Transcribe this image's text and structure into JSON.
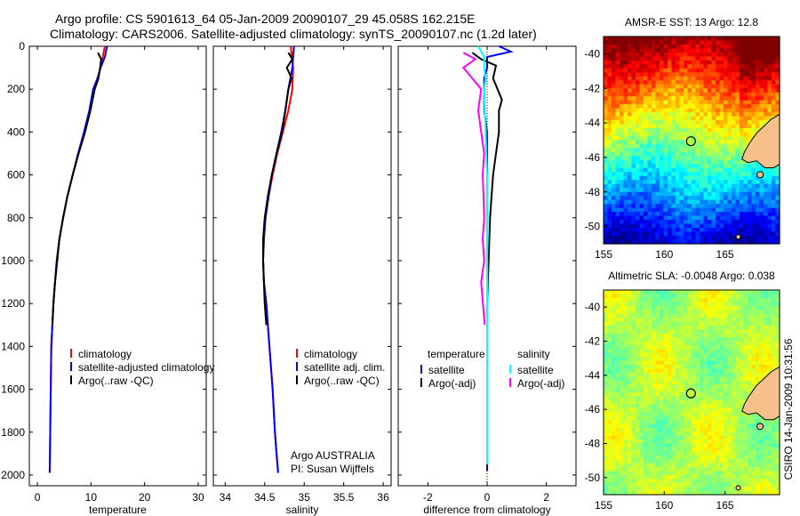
{
  "header": {
    "line1": "Argo profile: CS 5901613_64 05-Jan-2009 20090107_29 45.058S 162.215E",
    "line2": "Climatology: CARS2006. Satellite-adjusted climatology: synTS_20090107.nc (1.2d later)"
  },
  "colors": {
    "clim": "#ff0000",
    "sat": "#0000ff",
    "argo": "#000000",
    "sat_cyan": "#00ffff",
    "argo_mag": "#ff00ff"
  },
  "chart_data": [
    {
      "type": "line",
      "id": "temperature",
      "xlabel": "temperature",
      "ylabel": "",
      "xlim": [
        -1.5,
        31.5
      ],
      "ylim": [
        2050,
        0
      ],
      "xticks": [
        0,
        10,
        20,
        30
      ],
      "yticks": [
        0,
        200,
        400,
        600,
        800,
        1000,
        1200,
        1400,
        1600,
        1800,
        2000
      ],
      "legend": [
        "climatology",
        "satellite-adjusted climatology",
        "Argo(..raw -QC)"
      ],
      "series": [
        {
          "name": "climatology",
          "color": "red",
          "x": [
            12.6,
            12.2,
            11.8,
            11.2,
            10.5,
            9.8,
            8.8,
            7.6,
            6.6,
            5.6,
            4.8,
            4.1,
            3.7,
            3.3,
            3.0,
            2.8,
            2.6,
            2.5,
            2.4,
            2.3
          ],
          "y": [
            0,
            50,
            100,
            150,
            200,
            300,
            400,
            500,
            600,
            700,
            800,
            900,
            1000,
            1100,
            1200,
            1300,
            1400,
            1600,
            1800,
            1990
          ]
        },
        {
          "name": "satellite-adjusted climatology",
          "color": "blue",
          "x": [
            13.0,
            12.6,
            11.8,
            11.2,
            10.4,
            9.7,
            8.7,
            7.6,
            6.6,
            5.6,
            4.8,
            4.1,
            3.7,
            3.3,
            3.0,
            2.8,
            2.6,
            2.5,
            2.4,
            2.3
          ],
          "y": [
            0,
            50,
            100,
            150,
            200,
            300,
            400,
            500,
            600,
            700,
            800,
            900,
            1000,
            1100,
            1200,
            1300,
            1400,
            1600,
            1800,
            1990
          ]
        },
        {
          "name": "Argo(..raw -QC)",
          "color": "black",
          "x": [
            11.3,
            11.9,
            11.7,
            11.4,
            10.7,
            9.9,
            8.9,
            7.7,
            6.6,
            5.6,
            4.8,
            4.1,
            3.6,
            3.3,
            3.0,
            2.8
          ],
          "y": [
            30,
            60,
            100,
            150,
            200,
            300,
            400,
            500,
            600,
            700,
            800,
            900,
            1000,
            1100,
            1200,
            1300
          ]
        }
      ]
    },
    {
      "type": "line",
      "id": "salinity",
      "xlabel": "salinity",
      "ylabel": "",
      "xlim": [
        33.85,
        36.1
      ],
      "ylim": [
        2050,
        0
      ],
      "xticks": [
        34,
        34.5,
        35,
        35.5,
        36
      ],
      "yticks": [
        0,
        200,
        400,
        600,
        800,
        1000,
        1200,
        1400,
        1600,
        1800,
        2000
      ],
      "legend": [
        "climatology",
        "satellite adj. clim.",
        "Argo(..raw -QC)"
      ],
      "annotation": [
        "Argo AUSTRALIA",
        "PI: Susan Wijffels"
      ],
      "series": [
        {
          "name": "climatology",
          "color": "red",
          "x": [
            34.83,
            34.86,
            34.85,
            34.8,
            34.73,
            34.66,
            34.6,
            34.55,
            34.51,
            34.49,
            34.48,
            34.49,
            34.52,
            34.56,
            34.6,
            34.63,
            34.65,
            34.67
          ],
          "y": [
            0,
            100,
            200,
            300,
            400,
            500,
            600,
            700,
            800,
            900,
            1000,
            1100,
            1200,
            1400,
            1600,
            1800,
            1900,
            1990
          ]
        },
        {
          "name": "satellite adj. clim.",
          "color": "blue",
          "x": [
            34.87,
            34.85,
            34.8,
            34.76,
            34.71,
            34.65,
            34.59,
            34.55,
            34.51,
            34.49,
            34.48,
            34.49,
            34.52,
            34.56,
            34.6,
            34.63,
            34.65,
            34.67
          ],
          "y": [
            0,
            100,
            200,
            300,
            400,
            500,
            600,
            700,
            800,
            900,
            1000,
            1100,
            1200,
            1400,
            1600,
            1800,
            1900,
            1990
          ]
        },
        {
          "name": "Argo(..raw -QC)",
          "color": "black",
          "x": [
            34.8,
            34.85,
            34.78,
            34.84,
            34.8,
            34.77,
            34.72,
            34.65,
            34.59,
            34.54,
            34.5,
            34.48,
            34.48,
            34.49,
            34.5,
            34.52
          ],
          "y": [
            30,
            60,
            100,
            150,
            200,
            280,
            400,
            500,
            600,
            700,
            800,
            900,
            1000,
            1100,
            1200,
            1300
          ]
        }
      ]
    },
    {
      "type": "line",
      "id": "difference",
      "xlabel": "difference from climatology",
      "ylabel": "",
      "xlim": [
        -3,
        3
      ],
      "ylim": [
        2050,
        0
      ],
      "xticks": [
        -2,
        0,
        2
      ],
      "yticks": [
        0,
        200,
        400,
        600,
        800,
        1000,
        1200,
        1400,
        1600,
        1800,
        2000
      ],
      "legend_left_title": "temperature",
      "legend_left": [
        "satellite",
        "Argo(-adj)"
      ],
      "legend_right_title": "salinity",
      "legend_right": [
        "satellite",
        "Argo(-adj)"
      ],
      "series": [
        {
          "name": "temperature satellite",
          "color": "blue",
          "x": [
            0.4,
            0.8,
            0.0,
            0.0,
            -0.1,
            -0.1,
            -0.1,
            0.0,
            0.0,
            0.0,
            0.0,
            0.0,
            0.0,
            0.0,
            0.0
          ],
          "y": [
            0,
            25,
            50,
            100,
            150,
            200,
            300,
            400,
            600,
            800,
            1000,
            1200,
            1400,
            1600,
            1980
          ]
        },
        {
          "name": "temperature Argo(-adj)",
          "color": "black",
          "x": [
            -0.5,
            -0.2,
            0.3,
            0.2,
            0.5,
            0.4,
            0.4,
            0.3,
            0.2,
            0.1,
            0.05,
            0.0,
            0.0
          ],
          "y": [
            30,
            60,
            90,
            150,
            250,
            300,
            400,
            500,
            600,
            800,
            1000,
            1200,
            1300
          ]
        },
        {
          "name": "salinity satellite",
          "color": "cyan",
          "x": [
            -0.3,
            -0.1,
            -0.1,
            -0.05,
            -0.1,
            -0.08,
            -0.05,
            -0.03,
            0.0,
            0.0,
            0.0,
            0.0,
            0.0
          ],
          "y": [
            0,
            50,
            100,
            150,
            200,
            300,
            400,
            500,
            600,
            800,
            1000,
            1200,
            1950
          ]
        },
        {
          "name": "salinity Argo(-adj)",
          "color": "magenta",
          "x": [
            -0.8,
            -0.4,
            -0.8,
            -0.5,
            -0.2,
            -0.3,
            -0.2,
            -0.1,
            -0.15,
            -0.12,
            -0.1,
            -0.15,
            -0.1,
            -0.2,
            -0.08
          ],
          "y": [
            30,
            60,
            100,
            150,
            200,
            300,
            400,
            500,
            600,
            700,
            800,
            900,
            1000,
            1100,
            1300
          ]
        }
      ]
    },
    {
      "type": "heatmap",
      "id": "sst_map",
      "title": "AMSR-E SST: 13 Argo: 12.8",
      "xlim": [
        155,
        169.5
      ],
      "ylim": [
        -51,
        -39
      ],
      "xticks": [
        155,
        160,
        165
      ],
      "yticks": [
        -40,
        -42,
        -44,
        -46,
        -48,
        -50
      ],
      "marker": {
        "lon": 162.2,
        "lat": -45.06
      },
      "colormap": "jet"
    },
    {
      "type": "heatmap",
      "id": "sla_map",
      "title": "Altimetric SLA: -0.0048 Argo: 0.038",
      "xlim": [
        155,
        169.5
      ],
      "ylim": [
        -51,
        -39
      ],
      "xticks": [
        155,
        160,
        165
      ],
      "yticks": [
        -40,
        -42,
        -44,
        -46,
        -48,
        -50
      ],
      "marker": {
        "lon": 162.2,
        "lat": -45.06
      },
      "colormap": "jet"
    }
  ],
  "side_label": "CSIRO 14-Jan-2009 10:31:56"
}
